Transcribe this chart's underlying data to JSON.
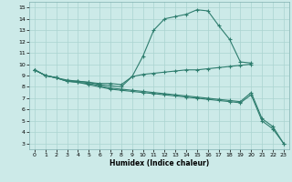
{
  "title": "",
  "xlabel": "Humidex (Indice chaleur)",
  "bg_color": "#cceae8",
  "grid_color": "#aad4d0",
  "line_color": "#2e7d6e",
  "xlim": [
    -0.5,
    23.5
  ],
  "ylim": [
    2.5,
    15.5
  ],
  "xticks": [
    0,
    1,
    2,
    3,
    4,
    5,
    6,
    7,
    8,
    9,
    10,
    11,
    12,
    13,
    14,
    15,
    16,
    17,
    18,
    19,
    20,
    21,
    22,
    23
  ],
  "yticks": [
    3,
    4,
    5,
    6,
    7,
    8,
    9,
    10,
    11,
    12,
    13,
    14,
    15
  ],
  "upper_x": [
    0,
    1,
    2,
    3,
    4,
    5,
    6,
    7,
    8,
    9,
    10,
    11,
    12,
    13,
    14,
    15,
    16,
    17,
    18,
    19,
    20
  ],
  "upper_y": [
    9.5,
    9.0,
    8.8,
    8.5,
    8.5,
    8.4,
    8.2,
    8.1,
    8.0,
    8.9,
    10.7,
    13.0,
    14.0,
    14.2,
    14.4,
    14.8,
    14.7,
    13.4,
    12.2,
    10.2,
    10.1
  ],
  "mid_x": [
    0,
    1,
    2,
    3,
    4,
    5,
    6,
    7,
    8,
    9,
    10,
    11,
    12,
    13,
    14,
    15,
    16,
    17,
    18,
    19,
    20
  ],
  "mid_y": [
    9.5,
    9.0,
    8.8,
    8.6,
    8.5,
    8.4,
    8.3,
    8.3,
    8.2,
    8.9,
    9.1,
    9.2,
    9.3,
    9.4,
    9.5,
    9.5,
    9.6,
    9.7,
    9.8,
    9.9,
    10.0
  ],
  "low1_x": [
    0,
    1,
    2,
    3,
    4,
    5,
    6,
    7,
    8,
    9,
    10,
    11,
    12,
    13,
    14,
    15,
    16,
    17,
    18,
    19,
    20,
    21,
    22,
    23
  ],
  "low1_y": [
    9.5,
    9.0,
    8.8,
    8.5,
    8.4,
    8.3,
    8.1,
    7.9,
    7.8,
    7.7,
    7.6,
    7.5,
    7.4,
    7.3,
    7.2,
    7.1,
    7.0,
    6.9,
    6.8,
    6.7,
    7.5,
    5.2,
    4.5,
    3.0
  ],
  "low2_x": [
    0,
    1,
    2,
    3,
    4,
    5,
    6,
    7,
    8,
    9,
    10,
    11,
    12,
    13,
    14,
    15,
    16,
    17,
    18,
    19,
    20,
    21,
    22,
    23
  ],
  "low2_y": [
    9.5,
    9.0,
    8.8,
    8.5,
    8.4,
    8.2,
    8.0,
    7.8,
    7.7,
    7.6,
    7.5,
    7.4,
    7.3,
    7.2,
    7.1,
    7.0,
    6.9,
    6.8,
    6.7,
    6.6,
    7.3,
    5.0,
    4.3,
    3.0
  ]
}
